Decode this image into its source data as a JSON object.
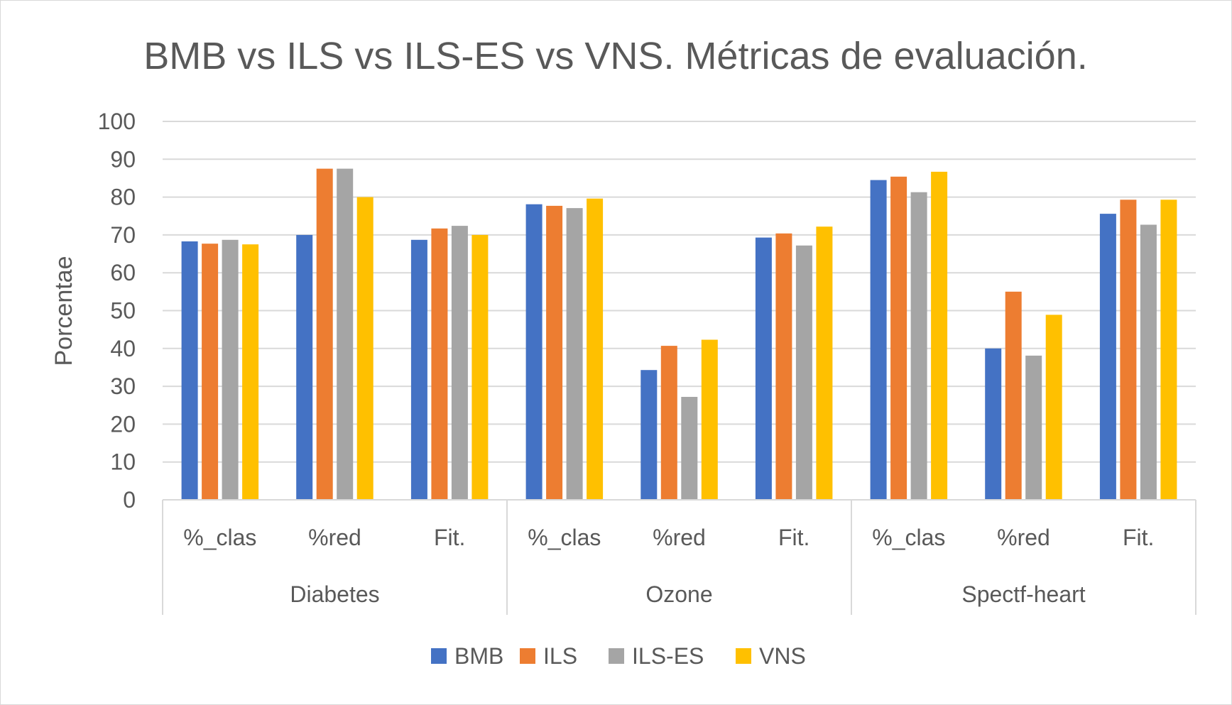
{
  "chart_data": {
    "type": "bar",
    "title": "BMB vs ILS vs ILS-ES vs VNS. Métricas de evaluación.",
    "xlabel": "",
    "ylabel": "Porcentae",
    "ylim": [
      0,
      100
    ],
    "yticks": [
      0,
      10,
      20,
      30,
      40,
      50,
      60,
      70,
      80,
      90,
      100
    ],
    "grid": true,
    "legend_position": "bottom",
    "groups": [
      {
        "name": "Diabetes",
        "categories": [
          "%_clas",
          "%red",
          "Fit."
        ]
      },
      {
        "name": "Ozone",
        "categories": [
          "%_clas",
          "%red",
          "Fit."
        ]
      },
      {
        "name": "Spectf-heart",
        "categories": [
          "%_clas",
          "%red",
          "Fit."
        ]
      }
    ],
    "categories": [
      "%_clas",
      "%red",
      "Fit.",
      "%_clas",
      "%red",
      "Fit.",
      "%_clas",
      "%red",
      "Fit."
    ],
    "series": [
      {
        "name": "BMB",
        "color": "#4472c4",
        "values": [
          68.3,
          70.0,
          68.7,
          78.1,
          34.3,
          69.3,
          84.5,
          40.0,
          75.6
        ]
      },
      {
        "name": "ILS",
        "color": "#ed7d31",
        "values": [
          67.7,
          87.5,
          71.7,
          77.7,
          40.7,
          70.4,
          85.4,
          55.0,
          79.3
        ]
      },
      {
        "name": "ILS-ES",
        "color": "#a5a5a5",
        "values": [
          68.7,
          87.5,
          72.4,
          77.1,
          27.2,
          67.2,
          81.3,
          38.1,
          72.7
        ]
      },
      {
        "name": "VNS",
        "color": "#ffc000",
        "values": [
          67.5,
          80.0,
          70.0,
          79.6,
          42.3,
          72.2,
          86.7,
          48.9,
          79.3
        ]
      }
    ]
  }
}
